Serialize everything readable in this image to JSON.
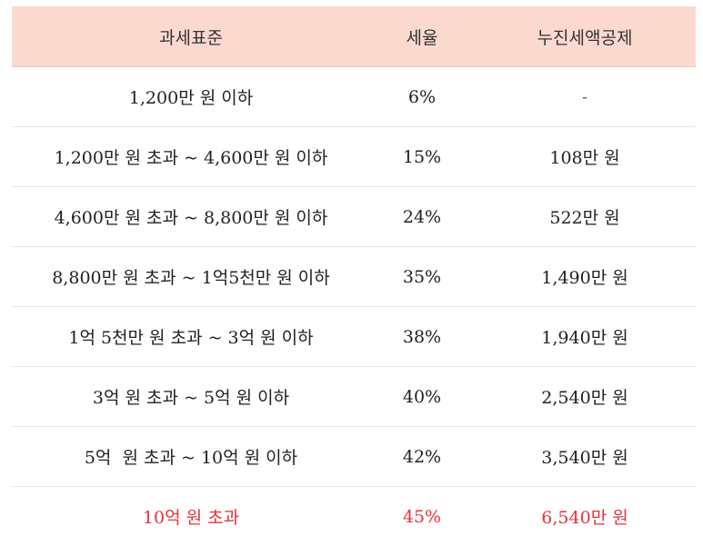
{
  "table": {
    "headers": [
      "과세표준",
      "세율",
      "누진세액공제"
    ],
    "rows": [
      {
        "bracket": "1,200만 원 이하",
        "rate": "6%",
        "deduction": "-"
      },
      {
        "bracket": "1,200만 원 초과 ~ 4,600만 원 이하",
        "rate": "15%",
        "deduction": "108만 원"
      },
      {
        "bracket": "4,600만 원 초과 ~ 8,800만 원 이하",
        "rate": "24%",
        "deduction": "522만 원"
      },
      {
        "bracket": "8,800만 원 초과 ~ 1억5천만 원 이하",
        "rate": "35%",
        "deduction": "1,490만 원"
      },
      {
        "bracket": "1억 5천만 원 초과 ~ 3억 원 이하",
        "rate": "38%",
        "deduction": "1,940만 원"
      },
      {
        "bracket": "3억 원 초과 ~ 5억 원 이하",
        "rate": "40%",
        "deduction": "2,540만 원"
      },
      {
        "bracket": "5억  원 초과 ~ 10억 원 이하",
        "rate": "42%",
        "deduction": "3,540만 원"
      },
      {
        "bracket": "10억 원 초과",
        "rate": "45%",
        "deduction": "6,540만 원"
      }
    ]
  },
  "colors": {
    "header_background": "#fcd9cf",
    "highlight_text": "#e8323a"
  }
}
